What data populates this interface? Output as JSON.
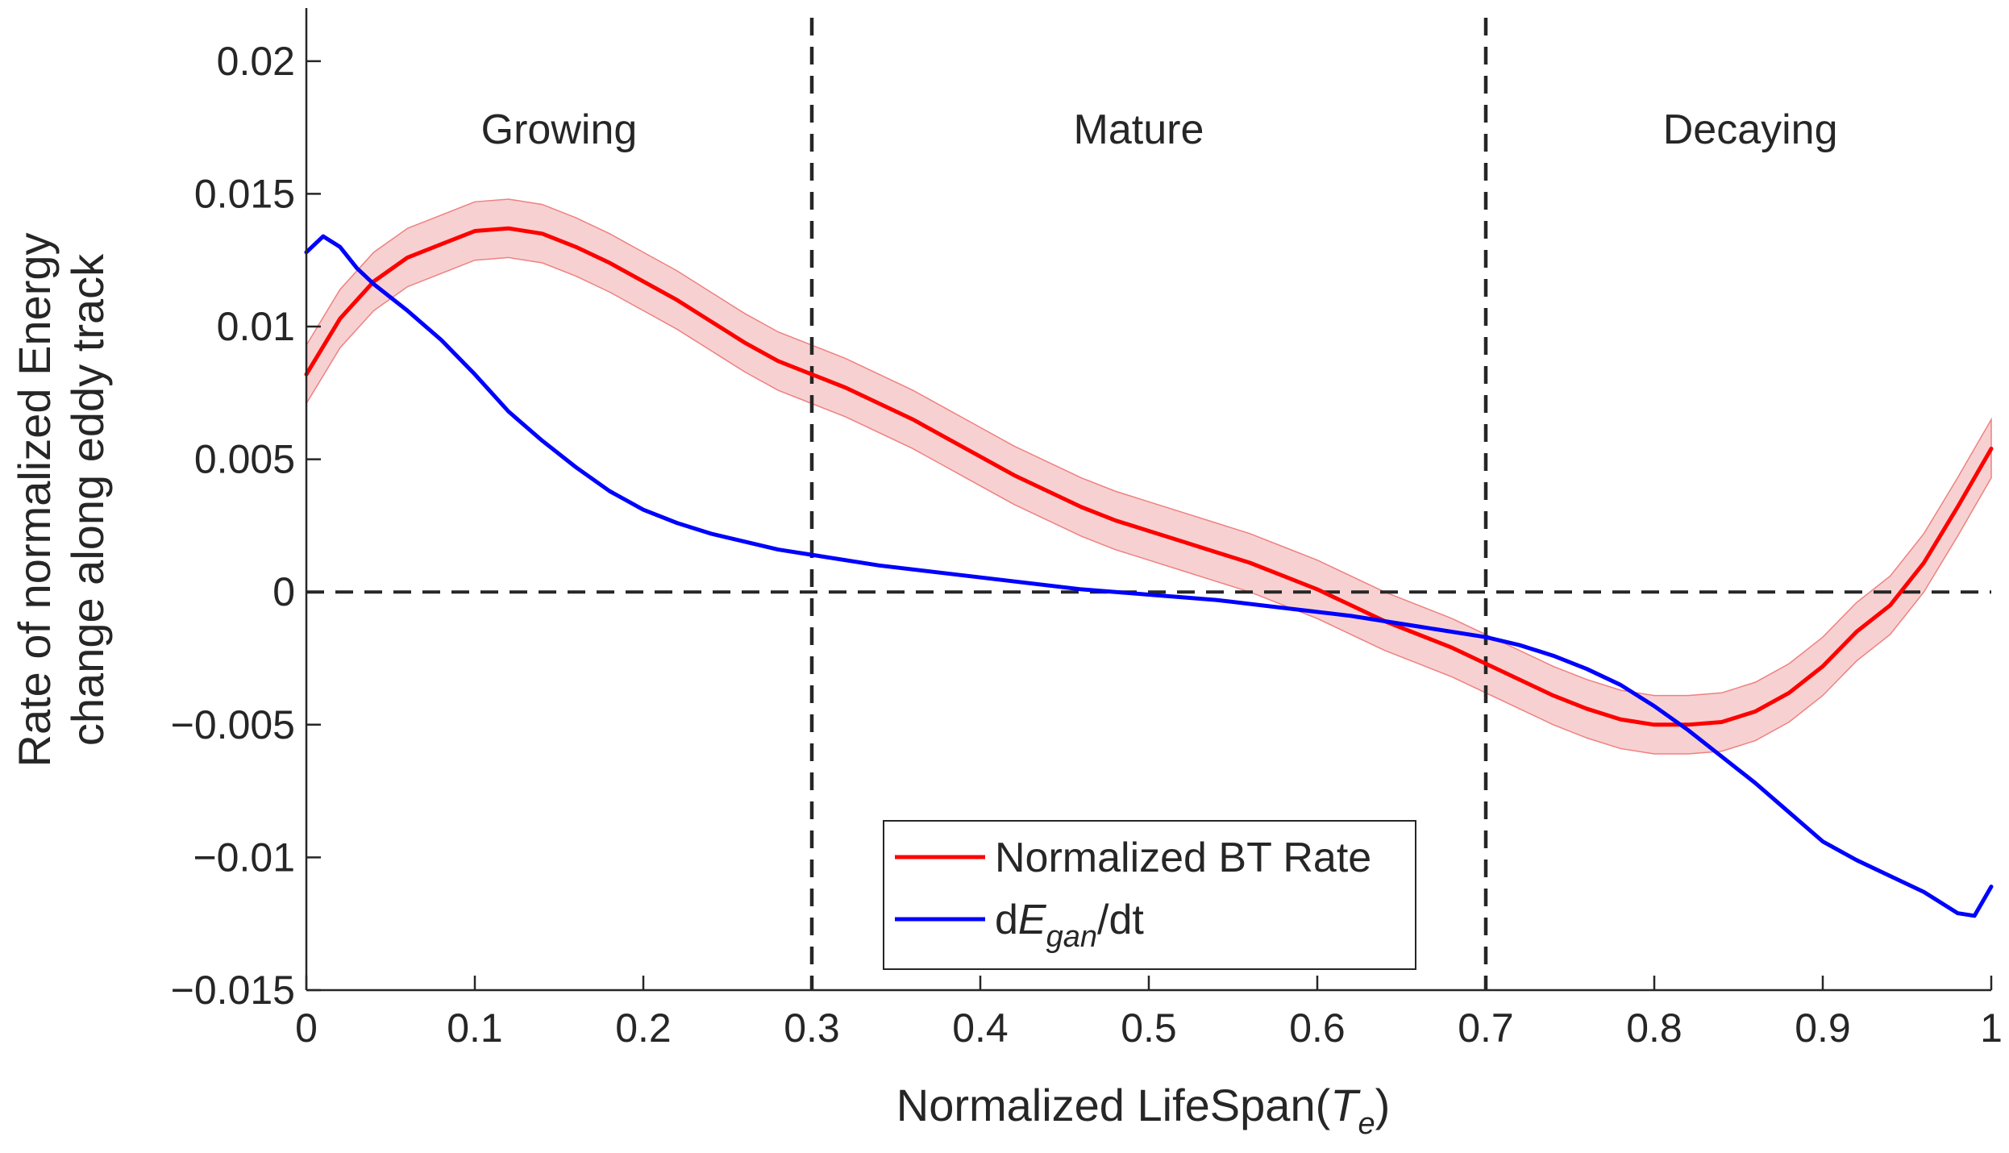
{
  "chart_data": {
    "type": "line",
    "title": "",
    "xlabel": "Normalized LifeSpan(",
    "xlabel_var": "T",
    "xlabel_sub": "e",
    "xlabel_close": ")",
    "ylabel_line1": "Rate of normalized Energy",
    "ylabel_line2": "change along eddy track",
    "xlim": [
      0,
      1
    ],
    "ylim": [
      -0.015,
      0.022
    ],
    "x_ticks": [
      0,
      0.1,
      0.2,
      0.3,
      0.4,
      0.5,
      0.6,
      0.7,
      0.8,
      0.9,
      1
    ],
    "x_tick_labels": [
      "0",
      "0.1",
      "0.2",
      "0.3",
      "0.4",
      "0.5",
      "0.6",
      "0.7",
      "0.8",
      "0.9",
      "1"
    ],
    "y_ticks": [
      -0.015,
      -0.01,
      -0.005,
      0,
      0.005,
      0.01,
      0.015,
      0.02
    ],
    "y_tick_labels": [
      "−0.015",
      "−0.01",
      "−0.005",
      "0",
      "0.005",
      "0.01",
      "0.015",
      "0.02"
    ],
    "grid": false,
    "vertical_dividers": [
      0.3,
      0.7
    ],
    "horizontal_reference": 0,
    "regions": [
      {
        "label": "Growing",
        "x": 0.15
      },
      {
        "label": "Mature",
        "x": 0.494
      },
      {
        "label": "Decaying",
        "x": 0.857
      }
    ],
    "region_label_y": 0.0169,
    "legend": {
      "placement": "bottom-center",
      "entries": [
        {
          "label": "Normalized BT Rate",
          "color": "#ff0000"
        },
        {
          "label_prefix": "d",
          "label_var": "E",
          "label_sub": "gan",
          "label_suffix": "/dt",
          "color": "#0000ff"
        }
      ]
    },
    "series": [
      {
        "name": "Normalized BT Rate",
        "color": "#ff0000",
        "band_color": "#f4c2c2",
        "band_halfwidth": 0.0011,
        "x": [
          0,
          0.02,
          0.04,
          0.06,
          0.08,
          0.1,
          0.12,
          0.14,
          0.16,
          0.18,
          0.2,
          0.22,
          0.24,
          0.26,
          0.28,
          0.3,
          0.32,
          0.34,
          0.36,
          0.38,
          0.4,
          0.42,
          0.44,
          0.46,
          0.48,
          0.5,
          0.52,
          0.54,
          0.56,
          0.58,
          0.6,
          0.62,
          0.64,
          0.66,
          0.68,
          0.7,
          0.72,
          0.74,
          0.76,
          0.78,
          0.8,
          0.82,
          0.84,
          0.86,
          0.88,
          0.9,
          0.92,
          0.94,
          0.96,
          0.98,
          1.0
        ],
        "y": [
          0.0082,
          0.0103,
          0.0117,
          0.0126,
          0.0131,
          0.0136,
          0.0137,
          0.0135,
          0.013,
          0.0124,
          0.0117,
          0.011,
          0.0102,
          0.0094,
          0.0087,
          0.0082,
          0.0077,
          0.0071,
          0.0065,
          0.0058,
          0.0051,
          0.0044,
          0.0038,
          0.0032,
          0.0027,
          0.0023,
          0.0019,
          0.0015,
          0.0011,
          0.0006,
          0.0001,
          -0.0005,
          -0.0011,
          -0.0016,
          -0.0021,
          -0.0027,
          -0.0033,
          -0.0039,
          -0.0044,
          -0.0048,
          -0.005,
          -0.005,
          -0.0049,
          -0.0045,
          -0.0038,
          -0.0028,
          -0.0015,
          -0.0005,
          0.0011,
          0.0032,
          0.0054
        ]
      },
      {
        "name": "dE_gan/dt",
        "color": "#0000ff",
        "x": [
          0,
          0.01,
          0.02,
          0.03,
          0.04,
          0.06,
          0.08,
          0.1,
          0.12,
          0.14,
          0.16,
          0.18,
          0.2,
          0.22,
          0.24,
          0.26,
          0.28,
          0.3,
          0.34,
          0.38,
          0.42,
          0.46,
          0.5,
          0.54,
          0.58,
          0.62,
          0.66,
          0.7,
          0.72,
          0.74,
          0.76,
          0.78,
          0.8,
          0.82,
          0.84,
          0.86,
          0.88,
          0.9,
          0.92,
          0.94,
          0.96,
          0.97,
          0.98,
          0.99,
          1.0
        ],
        "y": [
          0.0128,
          0.0134,
          0.013,
          0.0122,
          0.0116,
          0.0106,
          0.0095,
          0.0082,
          0.0068,
          0.0057,
          0.0047,
          0.0038,
          0.0031,
          0.0026,
          0.0022,
          0.0019,
          0.0016,
          0.0014,
          0.001,
          0.0007,
          0.0004,
          0.0001,
          -0.0001,
          -0.0003,
          -0.0006,
          -0.0009,
          -0.0013,
          -0.0017,
          -0.002,
          -0.0024,
          -0.0029,
          -0.0035,
          -0.0043,
          -0.0052,
          -0.0062,
          -0.0072,
          -0.0083,
          -0.0094,
          -0.0101,
          -0.0107,
          -0.0113,
          -0.0117,
          -0.0121,
          -0.0122,
          -0.0111
        ]
      }
    ]
  }
}
